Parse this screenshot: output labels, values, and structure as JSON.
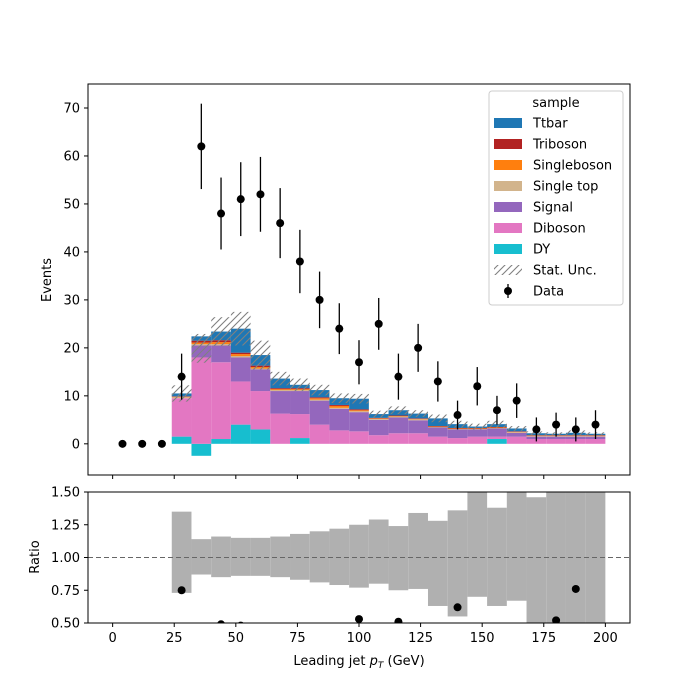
{
  "chart_data": [
    {
      "type": "bar",
      "subtype": "stacked-histogram-with-data-points",
      "title": "",
      "xlabel": "",
      "ylabel": "Events",
      "xlim": [
        -10,
        210
      ],
      "ylim": [
        -6.5,
        75
      ],
      "yticks": [
        0,
        10,
        20,
        30,
        40,
        50,
        60,
        70
      ],
      "xticks": [
        0,
        25,
        50,
        75,
        100,
        125,
        150,
        175,
        200
      ],
      "grid": false,
      "legend": {
        "title": "sample",
        "placement": "top-right",
        "entries": [
          "Ttbar",
          "Triboson",
          "Singleboson",
          "Single top",
          "Signal",
          "Diboson",
          "DY",
          "Stat. Unc.",
          "Data"
        ]
      },
      "bin_edges": [
        24,
        32,
        40,
        48,
        56,
        64,
        72,
        80,
        88,
        96,
        104,
        112,
        120,
        128,
        136,
        144,
        152,
        160,
        168,
        176,
        184,
        192,
        200
      ],
      "series": [
        {
          "name": "DY",
          "color": "#17becf",
          "values": [
            1.5,
            -2.5,
            1.0,
            4.0,
            3.0,
            0,
            1.2,
            0,
            0,
            0,
            0,
            0,
            0,
            0,
            0,
            0,
            1.0,
            0,
            0,
            0,
            0,
            0
          ]
        },
        {
          "name": "Diboson",
          "color": "#e377c2",
          "values": [
            8.0,
            18.0,
            16.0,
            9.0,
            8.0,
            6.3,
            5.0,
            4.0,
            2.8,
            2.6,
            1.8,
            2.2,
            2.2,
            1.5,
            1.2,
            1.5,
            0.5,
            1.5,
            1.0,
            1.0,
            1.0,
            1.0
          ]
        },
        {
          "name": "Signal",
          "color": "#9467bd",
          "values": [
            0,
            2.5,
            3.5,
            5.0,
            4.5,
            4.7,
            4.8,
            5.0,
            4.5,
            4.0,
            3.2,
            3.3,
            2.7,
            1.9,
            1.8,
            1.5,
            1.7,
            0.8,
            0.5,
            0.5,
            0.5,
            0.5
          ]
        },
        {
          "name": "Single top",
          "color": "#d2b48c",
          "values": [
            0.2,
            0.3,
            0.3,
            0.3,
            0.2,
            0.2,
            0.2,
            0.2,
            0.2,
            0.2,
            0.2,
            0.2,
            0.2,
            0.1,
            0.1,
            0.1,
            0.1,
            0.1,
            0.1,
            0.1,
            0.1,
            0.1
          ]
        },
        {
          "name": "Singleboson",
          "color": "#ff7f0e",
          "values": [
            0.1,
            0.3,
            0.4,
            0.4,
            0.3,
            0.2,
            0.2,
            0.3,
            0.4,
            0.2,
            0.1,
            0.1,
            0.1,
            0.1,
            0.1,
            0.1,
            0.1,
            0.1,
            0.1,
            0.1,
            0.1,
            0.1
          ]
        },
        {
          "name": "Triboson",
          "color": "#b22222",
          "values": [
            0.1,
            0.4,
            0.4,
            0.3,
            0.3,
            0.2,
            0.2,
            0.2,
            0.2,
            0.2,
            0.1,
            0.1,
            0.1,
            0.1,
            0.1,
            0.1,
            0.1,
            0.1,
            0.1,
            0.1,
            0.1,
            0.1
          ]
        },
        {
          "name": "Ttbar",
          "color": "#1f77b4",
          "values": [
            0.6,
            0.9,
            1.8,
            5.0,
            2.2,
            2.0,
            0.7,
            1.5,
            1.4,
            2.2,
            0.8,
            1.1,
            1.0,
            1.6,
            0.8,
            0.3,
            0.6,
            0.6,
            0.4,
            0.3,
            0.5,
            0.3
          ]
        }
      ],
      "stat_unc": [
        1.7,
        3.0,
        3.0,
        3.5,
        3.0,
        1.4,
        1.3,
        1.1,
        1.0,
        1.0,
        0.7,
        0.8,
        0.7,
        0.8,
        0.7,
        0.6,
        0.7,
        0.5,
        0.4,
        0.3,
        0.5,
        0.3
      ],
      "data_points": [
        {
          "x": 4,
          "y": 0,
          "err": 0
        },
        {
          "x": 12,
          "y": 0,
          "err": 0
        },
        {
          "x": 20,
          "y": 0,
          "err": 0
        },
        {
          "x": 28,
          "y": 14,
          "err": 4.8
        },
        {
          "x": 36,
          "y": 62,
          "err": 8.9
        },
        {
          "x": 44,
          "y": 48,
          "err": 7.5
        },
        {
          "x": 52,
          "y": 51,
          "err": 7.7
        },
        {
          "x": 60,
          "y": 52,
          "err": 7.8
        },
        {
          "x": 68,
          "y": 46,
          "err": 7.3
        },
        {
          "x": 76,
          "y": 38,
          "err": 6.6
        },
        {
          "x": 84,
          "y": 30,
          "err": 5.9
        },
        {
          "x": 92,
          "y": 24,
          "err": 5.3
        },
        {
          "x": 100,
          "y": 17,
          "err": 4.6
        },
        {
          "x": 108,
          "y": 25,
          "err": 5.4
        },
        {
          "x": 116,
          "y": 14,
          "err": 4.8
        },
        {
          "x": 124,
          "y": 20,
          "err": 5.0
        },
        {
          "x": 132,
          "y": 13,
          "err": 4.2
        },
        {
          "x": 140,
          "y": 6,
          "err": 3.0
        },
        {
          "x": 148,
          "y": 12,
          "err": 4.0
        },
        {
          "x": 156,
          "y": 7,
          "err": 3.0
        },
        {
          "x": 164,
          "y": 9,
          "err": 3.6
        },
        {
          "x": 172,
          "y": 3,
          "err": 2.5
        },
        {
          "x": 180,
          "y": 4,
          "err": 2.5
        },
        {
          "x": 188,
          "y": 3,
          "err": 2.5
        },
        {
          "x": 196,
          "y": 4,
          "err": 3.0
        }
      ]
    },
    {
      "type": "scatter",
      "subtype": "ratio-panel",
      "xlabel": "Leading jet  p_T (GeV)",
      "xlabel_main": "Leading jet ",
      "xlabel_symbol": "p",
      "xlabel_subscript": "T",
      "xlabel_unit": " (GeV)",
      "ylabel": "Ratio",
      "xlim": [
        -10,
        210
      ],
      "ylim": [
        0.5,
        1.5
      ],
      "yticks": [
        "0.50",
        "0.75",
        "1.00",
        "1.25",
        "1.50"
      ],
      "xticks": [
        "0",
        "25",
        "50",
        "75",
        "100",
        "125",
        "150",
        "175",
        "200"
      ],
      "reference_line": 1.0,
      "unc_band": {
        "color": "#b0b0b0",
        "bin_edges": [
          24,
          32,
          40,
          48,
          56,
          64,
          72,
          80,
          88,
          96,
          104,
          112,
          120,
          128,
          136,
          144,
          152,
          160,
          168,
          176,
          184,
          192,
          200
        ],
        "lower": [
          0.73,
          0.87,
          0.85,
          0.86,
          0.86,
          0.85,
          0.83,
          0.81,
          0.79,
          0.77,
          0.8,
          0.75,
          0.76,
          0.63,
          0.55,
          0.7,
          0.63,
          0.67,
          0.5,
          0.5,
          0.5,
          0.5
        ],
        "upper": [
          1.35,
          1.14,
          1.16,
          1.15,
          1.15,
          1.16,
          1.18,
          1.2,
          1.22,
          1.25,
          1.29,
          1.24,
          1.34,
          1.28,
          1.36,
          1.5,
          1.38,
          1.5,
          1.46,
          1.5,
          1.5,
          1.5
        ]
      },
      "points": [
        {
          "x": 28,
          "y": 0.75
        },
        {
          "x": 44,
          "y": 0.49
        },
        {
          "x": 52,
          "y": 0.48
        },
        {
          "x": 100,
          "y": 0.53
        },
        {
          "x": 116,
          "y": 0.51
        },
        {
          "x": 140,
          "y": 0.62
        },
        {
          "x": 180,
          "y": 0.52
        },
        {
          "x": 188,
          "y": 0.76
        }
      ]
    }
  ]
}
